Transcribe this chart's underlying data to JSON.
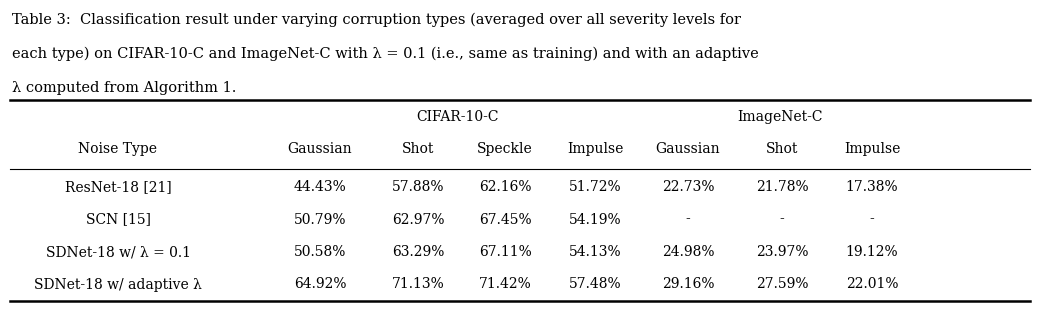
{
  "caption_lines": [
    "Table 3:  Classification result under varying corruption types (averaged over all severity levels for",
    "each type) on CIFAR-10-C and ImageNet-C with λ = 0.1 (i.e., same as training) and with an adaptive",
    "λ computed from Algorithm 1."
  ],
  "col_headers": [
    "Noise Type",
    "Gaussian",
    "Shot",
    "Speckle",
    "Impulse",
    "Gaussian",
    "Shot",
    "Impulse"
  ],
  "rows": [
    [
      "ResNet-18 [21]",
      "44.43%",
      "57.88%",
      "62.16%",
      "51.72%",
      "22.73%",
      "21.78%",
      "17.38%"
    ],
    [
      "SCN [15]",
      "50.79%",
      "62.97%",
      "67.45%",
      "54.19%",
      "-",
      "-",
      "-"
    ],
    [
      "SDNet-18 w/ λ = 0.1",
      "50.58%",
      "63.29%",
      "67.11%",
      "54.13%",
      "24.98%",
      "23.97%",
      "19.12%"
    ],
    [
      "SDNet-18 w/ adaptive λ",
      "64.92%",
      "71.13%",
      "71.42%",
      "57.48%",
      "29.16%",
      "27.59%",
      "22.01%"
    ]
  ],
  "cifar_label": "CIFAR-10-C",
  "imagenet_label": "ImageNet-C",
  "bg_color": "#ffffff",
  "font_size": 10.0,
  "caption_font_size": 10.5,
  "figsize": [
    10.43,
    3.09
  ],
  "dpi": 100
}
